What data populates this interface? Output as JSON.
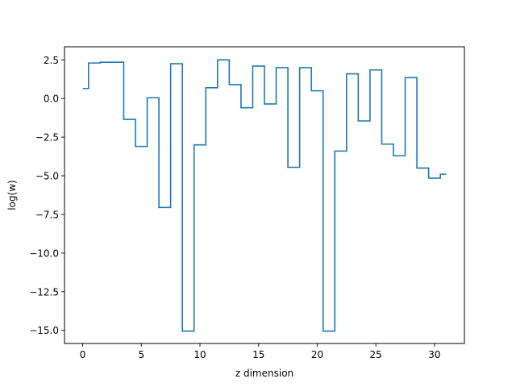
{
  "chart_data": {
    "type": "line",
    "drawstyle": "steps-mid",
    "xlabel": "z dimension",
    "ylabel": "log(w)",
    "xlim": [
      -1.55,
      32.55
    ],
    "ylim": [
      -15.85,
      3.35
    ],
    "grid": false,
    "x_ticks": [
      0,
      5,
      10,
      15,
      20,
      25,
      30
    ],
    "x_tick_labels": [
      "0",
      "5",
      "10",
      "15",
      "20",
      "25",
      "30"
    ],
    "y_ticks": [
      2.5,
      0.0,
      -2.5,
      -5.0,
      -7.5,
      -10.0,
      -12.5,
      -15.0
    ],
    "y_tick_labels": [
      "2.5",
      "0.0",
      "−2.5",
      "−5.0",
      "−7.5",
      "−10.0",
      "−12.5",
      "−15.0"
    ],
    "series": [
      {
        "color": "#1f77b4",
        "x": [
          0,
          1,
          2,
          3,
          4,
          5,
          6,
          7,
          8,
          9,
          10,
          11,
          12,
          13,
          14,
          15,
          16,
          17,
          18,
          19,
          20,
          21,
          22,
          23,
          24,
          25,
          26,
          27,
          28,
          29,
          30,
          31
        ],
        "values": [
          0.65,
          2.3,
          2.35,
          2.35,
          -1.35,
          -3.1,
          0.05,
          -7.05,
          2.25,
          -15.05,
          -3.0,
          0.7,
          2.5,
          0.9,
          -0.6,
          2.1,
          -0.35,
          2.0,
          -4.45,
          2.0,
          0.5,
          -15.05,
          -3.4,
          1.6,
          -1.45,
          1.85,
          -2.95,
          -3.7,
          1.35,
          -4.5,
          -5.15,
          -4.9
        ]
      }
    ]
  }
}
